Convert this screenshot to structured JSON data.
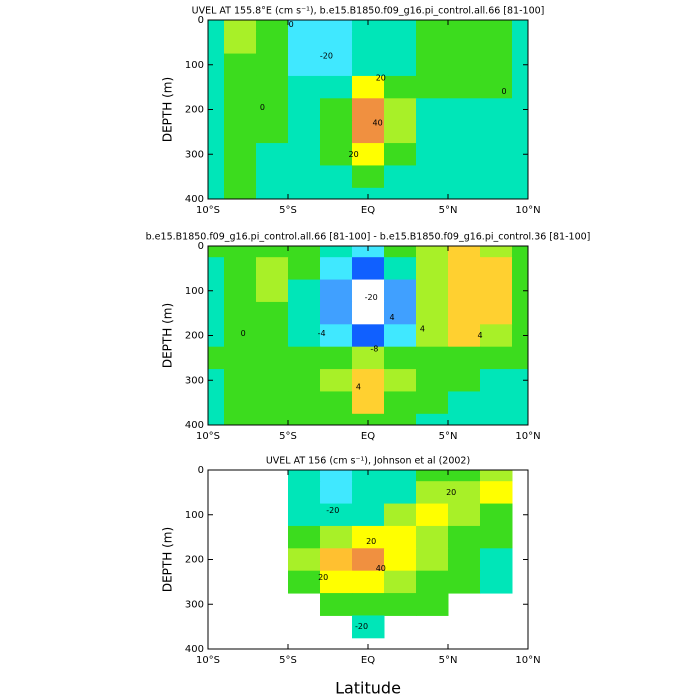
{
  "chart_data": [
    {
      "type": "contour",
      "title": "UVEL AT 155.8°E (cm s⁻¹), b.e15.B1850.f09_g16.pi_control.all.66 [81-100]",
      "ylabel": "DEPTH (m)",
      "x": [
        -10,
        -8,
        -6,
        -4,
        -2,
        0,
        2,
        4,
        6,
        8,
        10
      ],
      "y": [
        0,
        50,
        100,
        150,
        200,
        250,
        300,
        350,
        400
      ],
      "z": [
        [
          -5,
          12,
          5,
          -12,
          -15,
          -8,
          -5,
          5,
          8,
          2,
          -2
        ],
        [
          -5,
          15,
          5,
          -15,
          -18,
          -10,
          -5,
          5,
          8,
          3,
          -2
        ],
        [
          -3,
          8,
          3,
          -12,
          -15,
          -5,
          -2,
          5,
          6,
          2,
          -2
        ],
        [
          -3,
          3,
          2,
          -5,
          -5,
          20,
          5,
          2,
          3,
          0,
          -3
        ],
        [
          -3,
          2,
          1,
          -3,
          5,
          45,
          10,
          -2,
          -2,
          -3,
          -3
        ],
        [
          -3,
          2,
          1,
          -3,
          8,
          40,
          10,
          -2,
          -3,
          -3,
          -3
        ],
        [
          -3,
          1,
          -2,
          -3,
          2,
          25,
          5,
          -3,
          -3,
          -3,
          -3
        ],
        [
          -3,
          1,
          -2,
          -3,
          -2,
          5,
          -2,
          -3,
          -3,
          -3,
          -3
        ],
        [
          -3,
          1,
          -2,
          -3,
          -3,
          -2,
          -3,
          -3,
          -3,
          -3,
          -3
        ]
      ],
      "levels": [
        -20,
        -10,
        0,
        10,
        20,
        30,
        40
      ],
      "colors": [
        "#1e78ff",
        "#40e8ff",
        "#00e6b8",
        "#3cdc1e",
        "#a8f028",
        "#ffff00",
        "#ffc030",
        "#f09040"
      ],
      "contour_labels": [
        {
          "value": 0,
          "x": -4.8,
          "y": 10
        },
        {
          "value": -20,
          "x": -2.6,
          "y": 80
        },
        {
          "value": 20,
          "x": 0.8,
          "y": 130
        },
        {
          "value": 40,
          "x": 0.6,
          "y": 230
        },
        {
          "value": 20,
          "x": -0.9,
          "y": 300
        },
        {
          "value": 0,
          "x": 8.5,
          "y": 160
        },
        {
          "value": 0,
          "x": -6.6,
          "y": 195
        }
      ],
      "xlim": [
        -10,
        10
      ],
      "ylim": [
        0,
        400
      ],
      "y_inverted": true,
      "xticks": [
        {
          "value": -10,
          "label": "10°S"
        },
        {
          "value": -5,
          "label": "5°S"
        },
        {
          "value": 0,
          "label": "EQ"
        },
        {
          "value": 5,
          "label": "5°N"
        },
        {
          "value": 10,
          "label": "10°N"
        }
      ],
      "yticks": [
        0,
        100,
        200,
        300,
        400
      ]
    },
    {
      "type": "contour",
      "title": "b.e15.B1850.f09_g16.pi_control.all.66 [81-100] - b.e15.B1850.f09_g16.pi_control.36 [81-100]",
      "ylabel": "DEPTH (m)",
      "x": [
        -10,
        -8,
        -6,
        -4,
        -2,
        0,
        2,
        4,
        6,
        8,
        10
      ],
      "y": [
        0,
        50,
        100,
        150,
        200,
        250,
        300,
        350,
        400
      ],
      "z": [
        [
          0.5,
          1,
          1,
          0.5,
          -1,
          -3,
          0.5,
          3,
          5,
          3,
          1
        ],
        [
          -1,
          1,
          2,
          0.5,
          -4,
          -10,
          -2,
          3,
          6,
          4,
          1
        ],
        [
          -1,
          1,
          2,
          -1,
          -6,
          -22,
          -6,
          3,
          6,
          4,
          1
        ],
        [
          -1,
          1,
          1,
          -2,
          -8,
          -22,
          -6,
          2,
          5,
          4,
          1
        ],
        [
          -1,
          0.5,
          1,
          -1,
          -4,
          -10,
          -3,
          3,
          4,
          2,
          1
        ],
        [
          0.5,
          1,
          0.5,
          1,
          1,
          2,
          1,
          1,
          1,
          1,
          0.5
        ],
        [
          -1,
          1,
          0.5,
          1,
          2,
          5,
          2,
          1,
          0.5,
          -1,
          -1
        ],
        [
          -1,
          1,
          0.5,
          1,
          1,
          4,
          1,
          0.5,
          -1,
          -1,
          -1
        ],
        [
          -1,
          0.5,
          0.5,
          1,
          0.5,
          1,
          0.5,
          -1,
          -1,
          -1,
          -1
        ]
      ],
      "levels": [
        -20,
        -16,
        -12,
        -8,
        -4,
        -2,
        0,
        2,
        4
      ],
      "colors": [
        "#ffffff",
        "#c020c0",
        "#2010b0",
        "#1060ff",
        "#40a0ff",
        "#40e8ff",
        "#00e6b8",
        "#3cdc1e",
        "#a8f028",
        "#ffd030"
      ],
      "contour_labels": [
        {
          "value": -20,
          "x": 0.2,
          "y": 115
        },
        {
          "value": -8,
          "x": 0.4,
          "y": 230
        },
        {
          "value": -4,
          "x": -2.9,
          "y": 195
        },
        {
          "value": 4,
          "x": 1.5,
          "y": 160
        },
        {
          "value": 4,
          "x": 3.4,
          "y": 185
        },
        {
          "value": 4,
          "x": 7.0,
          "y": 200
        },
        {
          "value": 4,
          "x": -0.6,
          "y": 315
        },
        {
          "value": 0,
          "x": -7.8,
          "y": 195
        }
      ],
      "xlim": [
        -10,
        10
      ],
      "ylim": [
        0,
        400
      ],
      "y_inverted": true,
      "xticks": [
        {
          "value": -10,
          "label": "10°S"
        },
        {
          "value": -5,
          "label": "5°S"
        },
        {
          "value": 0,
          "label": "EQ"
        },
        {
          "value": 5,
          "label": "5°N"
        },
        {
          "value": 10,
          "label": "10°N"
        }
      ],
      "yticks": [
        0,
        100,
        200,
        300,
        400
      ]
    },
    {
      "type": "contour",
      "title": "UVEL AT 156 (cm s⁻¹), Johnson et al (2002)",
      "ylabel": "DEPTH (m)",
      "xlabel": "Latitude",
      "x": [
        -10,
        -8,
        -6,
        -4,
        -2,
        0,
        2,
        4,
        6,
        8,
        10
      ],
      "y": [
        0,
        50,
        100,
        150,
        200,
        250,
        300,
        350,
        400
      ],
      "z": [
        [
          null,
          null,
          null,
          -5,
          -12,
          -5,
          -3,
          5,
          8,
          15,
          null
        ],
        [
          null,
          null,
          null,
          -8,
          -15,
          -8,
          -5,
          10,
          15,
          20,
          null
        ],
        [
          null,
          null,
          null,
          -5,
          -10,
          -5,
          10,
          20,
          10,
          5,
          null
        ],
        [
          null,
          null,
          null,
          5,
          15,
          25,
          20,
          10,
          5,
          0,
          null
        ],
        [
          null,
          null,
          null,
          10,
          30,
          45,
          20,
          10,
          5,
          -2,
          null
        ],
        [
          null,
          null,
          null,
          5,
          20,
          25,
          15,
          5,
          0,
          -3,
          null
        ],
        [
          null,
          null,
          null,
          null,
          5,
          8,
          5,
          2,
          null,
          null,
          null
        ],
        [
          null,
          null,
          null,
          null,
          null,
          -2,
          null,
          null,
          null,
          null,
          null
        ],
        [
          null,
          null,
          null,
          null,
          null,
          null,
          null,
          null,
          null,
          null,
          null
        ]
      ],
      "levels": [
        -20,
        -10,
        0,
        10,
        20,
        30,
        40
      ],
      "colors": [
        "#1e78ff",
        "#40e8ff",
        "#00e6b8",
        "#3cdc1e",
        "#a8f028",
        "#ffff00",
        "#ffc030",
        "#f09040"
      ],
      "contour_labels": [
        {
          "value": -20,
          "x": -2.2,
          "y": 90
        },
        {
          "value": 20,
          "x": 5.2,
          "y": 50
        },
        {
          "value": 20,
          "x": 0.2,
          "y": 160
        },
        {
          "value": 40,
          "x": 0.8,
          "y": 220
        },
        {
          "value": 20,
          "x": -2.8,
          "y": 240
        },
        {
          "value": -20,
          "x": -0.4,
          "y": 350
        }
      ],
      "xlim": [
        -10,
        10
      ],
      "ylim": [
        0,
        400
      ],
      "y_inverted": true,
      "xticks": [
        {
          "value": -10,
          "label": "10°S"
        },
        {
          "value": -5,
          "label": "5°S"
        },
        {
          "value": 0,
          "label": "EQ"
        },
        {
          "value": 5,
          "label": "5°N"
        },
        {
          "value": 10,
          "label": "10°N"
        }
      ],
      "yticks": [
        0,
        100,
        200,
        300,
        400
      ]
    }
  ]
}
